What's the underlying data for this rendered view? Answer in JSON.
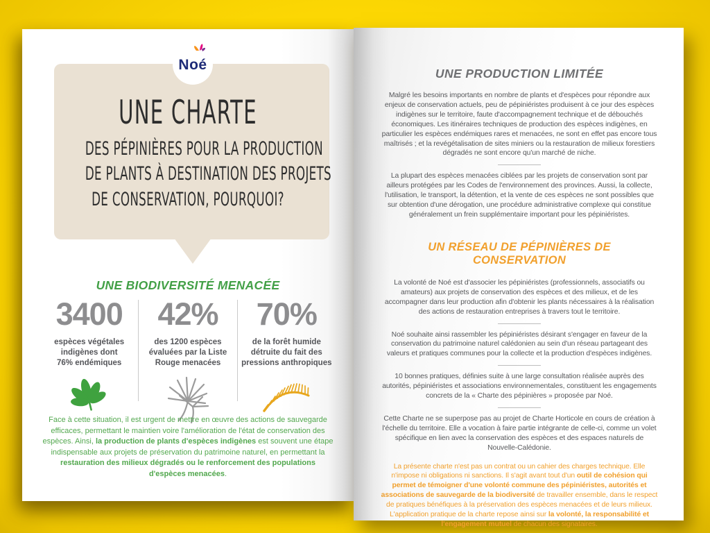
{
  "colors": {
    "background_yellow": "#F8D203",
    "page_white": "#FFFFFF",
    "bubble_beige": "#EAE1D3",
    "title_text": "#2D2D2D",
    "green": "#43A047",
    "green_paragraph": "#53A84F",
    "stat_number_gray": "#8D8D8F",
    "stat_label_gray": "#55565A",
    "body_gray": "#57585B",
    "heading_gray": "#6F7073",
    "orange": "#F1A02D",
    "palm_orange": "#E8A71E",
    "icon_gray": "#9B9B9B",
    "logo_navy": "#1E2B77"
  },
  "left_page": {
    "logo_text": "Noé",
    "title_line1": "UNE CHARTE",
    "title_line2": "DES PÉPINIÈRES POUR LA PRODUCTION",
    "title_line3": "DE PLANTS À DESTINATION DES PROJETS",
    "title_line4": "DE CONSERVATION, POURQUOI?",
    "stats_heading": "UNE BIODIVERSITÉ MENACÉE",
    "stats": [
      {
        "value": "3400",
        "label": "espèces végétales\nindigènes dont\n76% endémiques",
        "icon": "leaf-icon",
        "icon_color": "#3FA23F"
      },
      {
        "value": "42%",
        "label": "des 1200 espèces\névaluées par la Liste\nRouge menacées",
        "icon": "spiky-plant-icon",
        "icon_color": "#9B9B9B"
      },
      {
        "value": "70%",
        "label": "de la forêt humide\ndétruite du fait des\npressions anthropiques",
        "icon": "palm-frond-icon",
        "icon_color": "#E8A71E"
      }
    ],
    "green_paragraph_segments": [
      {
        "t": "Face à cette situation, il est urgent de mettre en œuvre des actions de sauvegarde efficaces,  permettant le maintien voire l'amélioration de l'état de conservation des espèces. Ainsi, ",
        "b": false
      },
      {
        "t": "la production de plants d'espèces indigènes",
        "b": true
      },
      {
        "t": " est souvent une étape indispensable aux projets de préservation du patrimoine naturel, en permettant la ",
        "b": false
      },
      {
        "t": "restauration des milieux dégradés ou le renforcement des populations d'espèces menacées",
        "b": true
      },
      {
        "t": ".",
        "b": false
      }
    ]
  },
  "right_page": {
    "heading1": "UNE PRODUCTION LIMITÉE",
    "p1": "Malgré les besoins importants en nombre de plants et d'espèces pour répondre aux enjeux de conservation actuels, peu de pépiniéristes produisent à ce jour des espèces indigènes sur le territoire, faute d'accompagnement technique et de débouchés économiques. Les itinéraires techniques de production des espèces indigènes, en particulier les espèces endémiques rares et menacées, ne sont en effet pas encore tous maîtrisés ; et la revégétalisation de sites miniers ou la restauration de milieux forestiers dégradés ne sont encore qu'un marché de niche.",
    "p2": "La plupart des espèces menacées ciblées par les projets de conservation sont par ailleurs protégées par les Codes de l'environnement des provinces. Aussi, la collecte, l'utilisation, le transport, la détention, et la vente de ces espèces ne sont possibles que sur obtention d'une dérogation, une procédure administrative complexe qui constitue généralement un frein supplémentaire important pour les pépiniéristes.",
    "heading2": "UN RÉSEAU DE PÉPINIÈRES DE CONSERVATION",
    "p3": "La volonté de Noé est d'associer les pépiniéristes (professionnels, associatifs ou amateurs) aux projets de conservation des espèces et des milieux, et de les accompagner dans leur production afin d'obtenir les plants nécessaires à la réalisation des actions de restauration entreprises à travers tout le territoire.",
    "p4": "Noé souhaite ainsi rassembler les pépiniéristes désirant s'engager en faveur de la conservation du patrimoine naturel calédonien au sein d'un réseau partageant des valeurs et pratiques communes pour la collecte et la production d'espèces indigènes.",
    "p5": "10 bonnes pratiques, définies suite à une large consultation réalisée auprès des autorités, pépiniéristes et associations environnementales, constituent les engagements concrets de la « Charte des pépinières » proposée par Noé.",
    "p6": "Cette Charte ne se superpose pas au projet de Charte Horticole en cours de création à l'échelle du territoire. Elle a vocation à faire partie intégrante de celle-ci, comme un volet spécifique en lien avec la conservation des espèces et des espaces naturels de Nouvelle-Calédonie.",
    "highlight_segments": [
      {
        "t": "La présente charte n'est pas un contrat ou un cahier des charges technique. Elle n'impose ni obligations ni sanctions. Il s'agit avant tout d'un ",
        "b": false
      },
      {
        "t": "outil de cohésion qui permet de témoigner d'une volonté commune des pépiniéristes, autorités et associations de sauvegarde de la biodiversité",
        "b": true
      },
      {
        "t": " de travailler ensemble, dans le respect de pratiques bénéfiques à la préservation des espèces menacées et de leurs milieux. L'application pratique de la charte repose ainsi sur ",
        "b": false
      },
      {
        "t": "la volonté, la responsabilité et l'engagement mutuel",
        "b": true
      },
      {
        "t": " de chacun des signataires.",
        "b": false
      }
    ]
  }
}
